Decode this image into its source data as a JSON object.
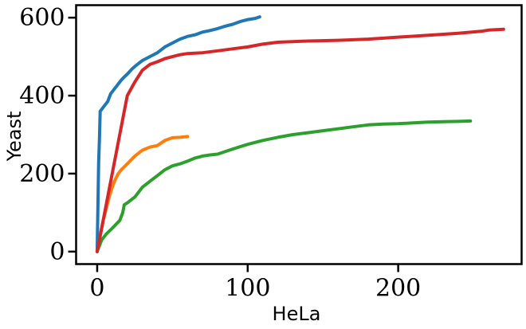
{
  "chart_data": {
    "type": "line",
    "title": "",
    "xlabel": "HeLa",
    "ylabel": "Yeast",
    "xlim": [
      -14,
      282
    ],
    "ylim": [
      -32,
      632
    ],
    "xticks": [
      0,
      100,
      200
    ],
    "xtick_labels": [
      "0",
      "100",
      "200"
    ],
    "yticks": [
      0,
      200,
      400,
      600
    ],
    "ytick_labels": [
      "0",
      "200",
      "400",
      "600"
    ],
    "grid": false,
    "legend": "none",
    "series": [
      {
        "color": "#1f77b4",
        "x": [
          0,
          1,
          1.5,
          2,
          3,
          4,
          5,
          6,
          7,
          8,
          9,
          10,
          12,
          14,
          16,
          18,
          20,
          23,
          26,
          30,
          35,
          40,
          45,
          50,
          55,
          60,
          65,
          70,
          75,
          80,
          85,
          90,
          95,
          100,
          105,
          108
        ],
        "y": [
          0,
          230,
          290,
          360,
          365,
          370,
          375,
          380,
          385,
          395,
          405,
          410,
          420,
          430,
          440,
          448,
          455,
          468,
          478,
          490,
          500,
          510,
          525,
          535,
          545,
          552,
          556,
          563,
          567,
          572,
          578,
          583,
          590,
          595,
          598,
          602
        ]
      },
      {
        "color": "#ff7f0e",
        "x": [
          0,
          2,
          4,
          6,
          8,
          10,
          12,
          14,
          16,
          20,
          25,
          30,
          35,
          40,
          45,
          50,
          55,
          60
        ],
        "y": [
          0,
          40,
          80,
          110,
          140,
          165,
          185,
          200,
          210,
          225,
          245,
          260,
          268,
          272,
          285,
          292,
          293,
          295
        ]
      },
      {
        "color": "#2ca02c",
        "x": [
          0,
          3,
          6,
          10,
          15,
          17,
          18,
          20,
          25,
          30,
          35,
          40,
          45,
          50,
          55,
          60,
          65,
          70,
          75,
          80,
          90,
          100,
          110,
          120,
          130,
          140,
          150,
          160,
          170,
          180,
          190,
          200,
          210,
          220,
          230,
          240,
          248
        ],
        "y": [
          0,
          30,
          45,
          60,
          80,
          100,
          120,
          125,
          140,
          165,
          180,
          195,
          210,
          220,
          225,
          232,
          240,
          245,
          248,
          250,
          263,
          275,
          285,
          293,
          300,
          305,
          310,
          315,
          320,
          325,
          327,
          328,
          330,
          332,
          333,
          334,
          335
        ]
      },
      {
        "color": "#d62728",
        "x": [
          0,
          10,
          20,
          25,
          30,
          35,
          40,
          45,
          50,
          55,
          60,
          70,
          80,
          90,
          100,
          110,
          120,
          140,
          160,
          180,
          200,
          220,
          240,
          255,
          260,
          270
        ],
        "y": [
          0,
          200,
          400,
          435,
          465,
          480,
          487,
          495,
          500,
          505,
          508,
          510,
          515,
          520,
          525,
          532,
          537,
          540,
          542,
          545,
          550,
          555,
          560,
          565,
          568,
          570
        ]
      }
    ]
  }
}
